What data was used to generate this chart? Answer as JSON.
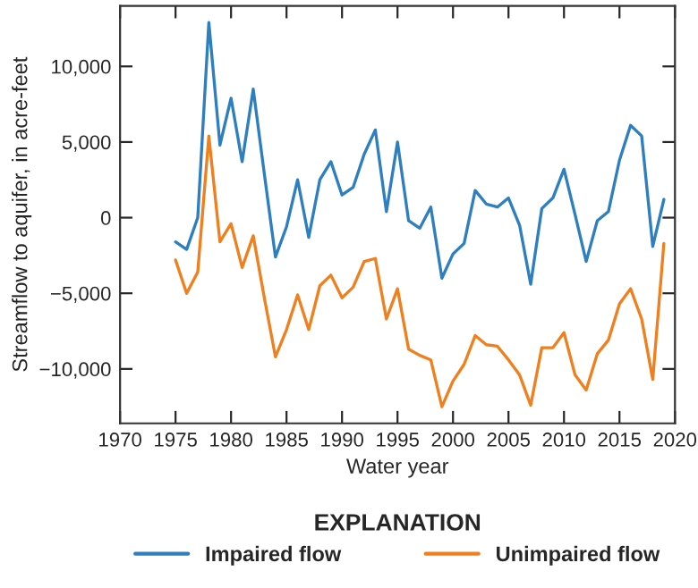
{
  "chart_data": {
    "type": "line",
    "xlabel": "Water year",
    "ylabel": "Streamflow to aquifer, in acre-feet",
    "legend_title": "EXPLANATION",
    "legend": "bottom",
    "grid": false,
    "marker": "none",
    "line_style": "solid",
    "x": [
      1975,
      1976,
      1977,
      1978,
      1979,
      1980,
      1981,
      1982,
      1983,
      1984,
      1985,
      1986,
      1987,
      1988,
      1989,
      1990,
      1991,
      1992,
      1993,
      1994,
      1995,
      1996,
      1997,
      1998,
      1999,
      2000,
      2001,
      2002,
      2003,
      2004,
      2005,
      2006,
      2007,
      2008,
      2009,
      2010,
      2011,
      2012,
      2013,
      2014,
      2015,
      2016,
      2017,
      2018,
      2019
    ],
    "series": [
      {
        "name": "Impaired flow",
        "color": "#2e7fc0",
        "values": [
          -1600,
          -2100,
          0,
          12900,
          4800,
          7900,
          3700,
          8500,
          2900,
          -2600,
          -600,
          2500,
          -1300,
          2500,
          3700,
          1500,
          2000,
          4200,
          5800,
          400,
          5000,
          -200,
          -700,
          700,
          -4000,
          -2400,
          -1700,
          1800,
          900,
          700,
          1300,
          -500,
          -4400,
          600,
          1300,
          3200,
          200,
          -2900,
          -200,
          400,
          3800,
          6100,
          5400,
          -1900,
          1200
        ]
      },
      {
        "name": "Unimpaired flow",
        "color": "#f07f1e",
        "values": [
          -2800,
          -5000,
          -3600,
          5400,
          -1600,
          -400,
          -3300,
          -1200,
          -5300,
          -9200,
          -7400,
          -5100,
          -7400,
          -4500,
          -3800,
          -5300,
          -4600,
          -2900,
          -2700,
          -6700,
          -4700,
          -8700,
          -9100,
          -9400,
          -12500,
          -10800,
          -9700,
          -7800,
          -8400,
          -8500,
          -9400,
          -10400,
          -12400,
          -8600,
          -8600,
          -7600,
          -10400,
          -11400,
          -9000,
          -8100,
          -5700,
          -4700,
          -6700,
          -10700,
          -1700
        ]
      }
    ],
    "xlim": [
      1970,
      2020
    ],
    "xticks": [
      1970,
      1975,
      1980,
      1985,
      1990,
      1995,
      2000,
      2005,
      2010,
      2015,
      2020
    ],
    "ylim": [
      -13600,
      14000
    ],
    "yticks": [
      {
        "value": -10000,
        "label": "−10,000"
      },
      {
        "value": -5000,
        "label": "−5,000"
      },
      {
        "value": 0,
        "label": "0"
      },
      {
        "value": 5000,
        "label": "5,000"
      },
      {
        "value": 10000,
        "label": "10,000"
      }
    ]
  }
}
